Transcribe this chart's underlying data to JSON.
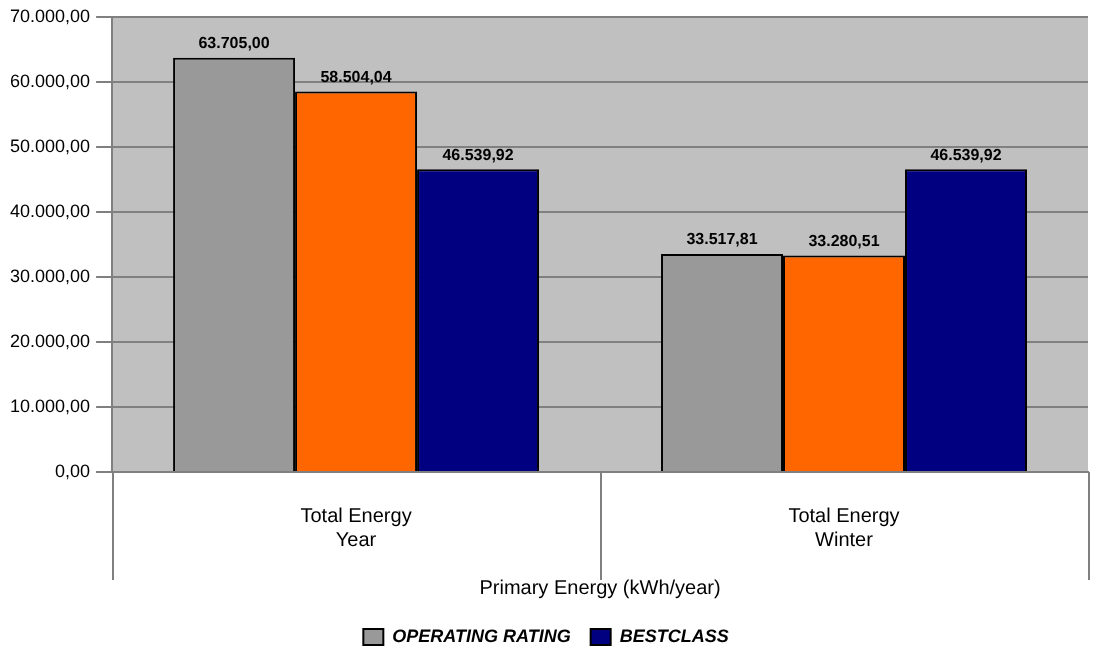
{
  "chart_data": {
    "type": "bar",
    "xlabel": "Primary Energy (kWh/year)",
    "categories": [
      "Total Energy\nYear",
      "Total Energy\nWinter"
    ],
    "series": [
      {
        "name": "OPERATING RATING",
        "color": "#999999",
        "values": [
          63705.0,
          33517.81
        ],
        "value_labels": [
          "63.705,00",
          "33.517,81"
        ]
      },
      {
        "color": "#ff6600",
        "values": [
          58504.04,
          33280.51
        ],
        "value_labels": [
          "58.504,04",
          "33.280,51"
        ]
      },
      {
        "name": "BESTCLASS",
        "color": "#000080",
        "values": [
          46539.92,
          46539.92
        ],
        "value_labels": [
          "46.539,92",
          "46.539,92"
        ]
      }
    ],
    "ylim": [
      0,
      70000
    ],
    "yticks": [
      {
        "value": 0,
        "label": "0,00"
      },
      {
        "value": 10000,
        "label": "10.000,00"
      },
      {
        "value": 20000,
        "label": "20.000,00"
      },
      {
        "value": 30000,
        "label": "30.000,00"
      },
      {
        "value": 40000,
        "label": "40.000,00"
      },
      {
        "value": 50000,
        "label": "50.000,00"
      },
      {
        "value": 60000,
        "label": "60.000,00"
      },
      {
        "value": 70000,
        "label": "70.000,00"
      }
    ],
    "grid": "y",
    "legend": "bottom"
  }
}
